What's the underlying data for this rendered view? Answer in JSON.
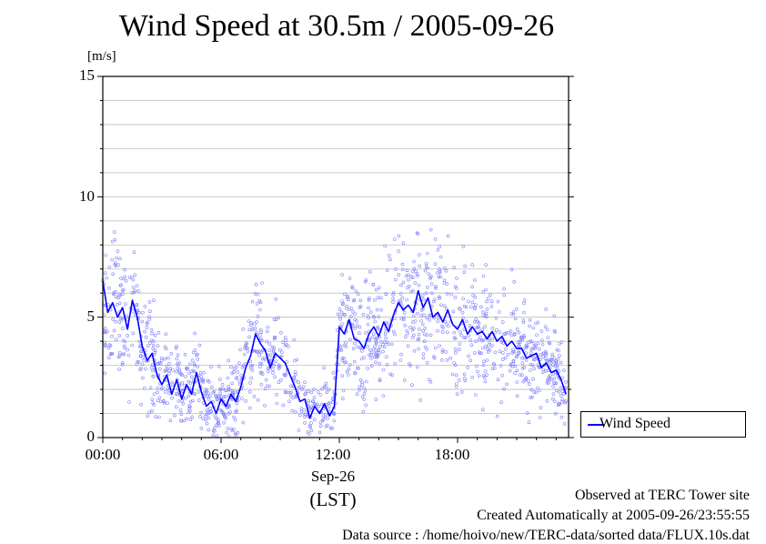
{
  "header": {
    "title": "Wind Speed at 30.5m / 2005-09-26"
  },
  "chart_data": {
    "type": "line",
    "title": "Wind Speed at 30.5m / 2005-09-26",
    "ylabel": "[m/s]",
    "xlabel": "(LST)",
    "date_label": "Sep-26",
    "ylim": [
      0,
      15
    ],
    "xlim_hours": [
      0,
      23.5
    ],
    "y_ticks": [
      "0",
      "5",
      "10",
      "15"
    ],
    "x_ticks": [
      "00:00",
      "06:00",
      "12:00",
      "18:00"
    ],
    "grid": "horizontal",
    "legend_position": "bottom-right, outside plot",
    "colors": {
      "series": "#0000ff",
      "raw_points": "#8080ff"
    },
    "series": [
      {
        "name": "Wind Speed",
        "x_hours": [
          0.0,
          0.25,
          0.5,
          0.75,
          1.0,
          1.25,
          1.5,
          1.75,
          2.0,
          2.25,
          2.5,
          2.75,
          3.0,
          3.25,
          3.5,
          3.75,
          4.0,
          4.25,
          4.5,
          4.75,
          5.0,
          5.25,
          5.5,
          5.75,
          6.0,
          6.25,
          6.5,
          6.75,
          7.0,
          7.25,
          7.5,
          7.75,
          8.0,
          8.25,
          8.5,
          8.75,
          9.0,
          9.25,
          9.5,
          9.75,
          10.0,
          10.25,
          10.5,
          10.75,
          11.0,
          11.25,
          11.5,
          11.75,
          12.0,
          12.25,
          12.5,
          12.75,
          13.0,
          13.25,
          13.5,
          13.75,
          14.0,
          14.25,
          14.5,
          14.75,
          15.0,
          15.25,
          15.5,
          15.75,
          16.0,
          16.25,
          16.5,
          16.75,
          17.0,
          17.25,
          17.5,
          17.75,
          18.0,
          18.25,
          18.5,
          18.75,
          19.0,
          19.25,
          19.5,
          19.75,
          20.0,
          20.25,
          20.5,
          20.75,
          21.0,
          21.25,
          21.5,
          21.75,
          22.0,
          22.25,
          22.5,
          22.75,
          23.0,
          23.25,
          23.5
        ],
        "values": [
          6.5,
          5.2,
          5.6,
          5.0,
          5.4,
          4.5,
          5.7,
          5.0,
          3.8,
          3.2,
          3.5,
          2.6,
          2.2,
          2.6,
          1.8,
          2.4,
          1.6,
          2.2,
          1.8,
          2.7,
          1.9,
          1.3,
          1.5,
          1.0,
          1.6,
          1.3,
          1.8,
          1.5,
          2.1,
          2.9,
          3.4,
          4.3,
          3.9,
          3.6,
          2.9,
          3.5,
          3.3,
          3.1,
          2.6,
          2.1,
          1.5,
          1.6,
          0.8,
          1.3,
          1.0,
          1.4,
          0.9,
          1.3,
          4.6,
          4.3,
          4.9,
          4.1,
          4.0,
          3.7,
          4.3,
          4.6,
          4.2,
          4.8,
          4.4,
          5.1,
          5.6,
          5.3,
          5.5,
          5.2,
          6.1,
          5.4,
          5.8,
          5.0,
          5.2,
          4.8,
          5.3,
          4.7,
          4.5,
          4.9,
          4.3,
          4.6,
          4.3,
          4.4,
          4.1,
          4.4,
          4.0,
          4.2,
          3.8,
          4.0,
          3.7,
          3.7,
          3.3,
          3.4,
          3.5,
          2.9,
          3.1,
          2.7,
          2.8,
          2.4,
          1.8
        ]
      }
    ]
  },
  "footer": {
    "line1": "Observed at TERC Tower site",
    "line2": "Created Automatically at 2005-09-26/23:55:55",
    "line3": "Data source : /home/hoivo/new/TERC-data/sorted  data/FLUX.10s.dat"
  }
}
